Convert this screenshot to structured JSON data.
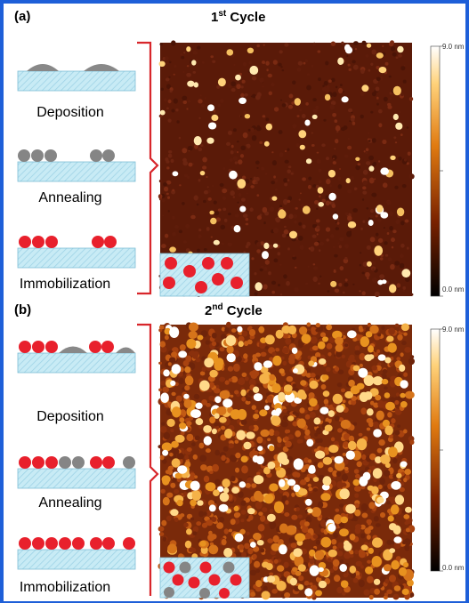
{
  "panels": [
    {
      "label": "(a)",
      "title_base": "1",
      "title_sup": "st",
      "title_rest": " Cycle",
      "steps": [
        "Deposition",
        "Annealing",
        "Immobilization"
      ],
      "scale_max": "9.0 nm",
      "scale_min": "0.0 nm"
    },
    {
      "label": "(b)",
      "title_base": "2",
      "title_sup": "nd",
      "title_rest": " Cycle",
      "steps": [
        "Deposition",
        "Annealing",
        "Immobilization"
      ],
      "scale_max": "9.0 nm",
      "scale_min": "0.0 nm"
    }
  ],
  "colors": {
    "frame": "#1e5fd8",
    "substrate": "#bfe6f2",
    "red_particle": "#e8202c",
    "gray_particle": "#858585",
    "bracket": "#d8262b",
    "afm_dark": "#5a1a08",
    "afm_light": "#fff5d0"
  }
}
